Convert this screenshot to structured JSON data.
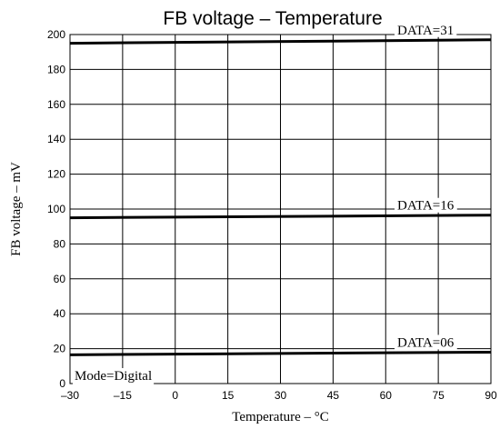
{
  "chart_data": {
    "type": "line",
    "title": "FB voltage – Temperature",
    "xlabel": "Temperature – °C",
    "ylabel": "FB voltage – mV",
    "xlim": [
      -30,
      90
    ],
    "ylim": [
      0,
      200
    ],
    "x_ticks": [
      -30,
      -15,
      0,
      15,
      30,
      45,
      60,
      75,
      90
    ],
    "x_tick_labels": [
      "–30",
      "–15",
      "0",
      "15",
      "30",
      "45",
      "60",
      "75",
      "90"
    ],
    "y_ticks": [
      0,
      20,
      40,
      60,
      80,
      100,
      120,
      140,
      160,
      180,
      200
    ],
    "y_tick_labels": [
      "0",
      "20",
      "40",
      "60",
      "80",
      "100",
      "120",
      "140",
      "160",
      "180",
      "200"
    ],
    "grid": true,
    "series": [
      {
        "name": "DATA=31",
        "x": [
          -30,
          90
        ],
        "y": [
          195,
          197
        ],
        "color": "#000000"
      },
      {
        "name": "DATA=16",
        "x": [
          -30,
          90
        ],
        "y": [
          95,
          96.5
        ],
        "color": "#000000"
      },
      {
        "name": "DATA=06",
        "x": [
          -30,
          90
        ],
        "y": [
          16.5,
          18
        ],
        "color": "#000000"
      }
    ],
    "annotation": "Mode=Digital"
  }
}
